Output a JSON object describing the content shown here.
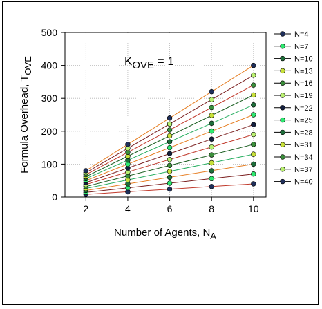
{
  "chart_data": {
    "type": "line",
    "annotation": {
      "main": "K",
      "sub": "OVE",
      "rest": " = 1"
    },
    "xlabel": {
      "main": "Number of Agents, N",
      "sub": "A"
    },
    "ylabel": {
      "main": "Formula Overhead, T",
      "sub": "OVE"
    },
    "xlim": [
      1,
      10.6
    ],
    "ylim": [
      0,
      500
    ],
    "x_ticks": [
      2,
      4,
      6,
      8,
      10
    ],
    "y_ticks": [
      0,
      100,
      200,
      300,
      400,
      500
    ],
    "grid": true,
    "legend_position": "right",
    "x": [
      2,
      4,
      6,
      8,
      10
    ],
    "series": [
      {
        "name": "N=4",
        "color": "#1f2f5a",
        "values": [
          8,
          16,
          24,
          32,
          40
        ]
      },
      {
        "name": "N=7",
        "color": "#2ee870",
        "values": [
          14,
          28,
          42,
          56,
          70
        ]
      },
      {
        "name": "N=10",
        "color": "#1e6e3a",
        "values": [
          20,
          40,
          60,
          80,
          100
        ]
      },
      {
        "name": "N=13",
        "color": "#c7e03a",
        "values": [
          26,
          52,
          78,
          104,
          130
        ]
      },
      {
        "name": "N=16",
        "color": "#3c8f3c",
        "values": [
          32,
          64,
          96,
          128,
          160
        ]
      },
      {
        "name": "N=19",
        "color": "#b9f070",
        "values": [
          38,
          76,
          114,
          152,
          190
        ]
      },
      {
        "name": "N=22",
        "color": "#14203e",
        "values": [
          44,
          88,
          132,
          176,
          220
        ]
      },
      {
        "name": "N=25",
        "color": "#2ee870",
        "values": [
          50,
          100,
          150,
          200,
          250
        ]
      },
      {
        "name": "N=28",
        "color": "#1e6e3a",
        "values": [
          56,
          112,
          168,
          224,
          280
        ]
      },
      {
        "name": "N=31",
        "color": "#c7e03a",
        "values": [
          62,
          124,
          186,
          248,
          310
        ]
      },
      {
        "name": "N=34",
        "color": "#3c8f3c",
        "values": [
          68,
          136,
          204,
          272,
          340
        ]
      },
      {
        "name": "N=37",
        "color": "#b9f070",
        "values": [
          74,
          148,
          222,
          296,
          370
        ]
      },
      {
        "name": "N=40",
        "color": "#1f2f5a",
        "values": [
          80,
          160,
          240,
          320,
          400
        ]
      }
    ],
    "line_colors": [
      "#c0392b",
      "#7a1e1e",
      "#e67e22",
      "#27ae60",
      "#1a5e20"
    ]
  }
}
